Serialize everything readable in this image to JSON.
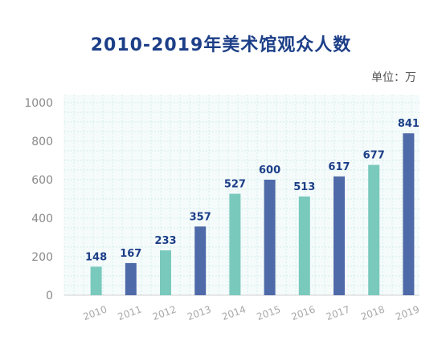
{
  "chart_data": {
    "type": "bar",
    "title": "2010-2019年美术馆观众人数",
    "unit": "单位：万",
    "categories": [
      "2010",
      "2011",
      "2012",
      "2013",
      "2014",
      "2015",
      "2016",
      "2017",
      "2018",
      "2019"
    ],
    "values": [
      148,
      167,
      233,
      357,
      527,
      600,
      513,
      617,
      677,
      841
    ],
    "bar_colors": [
      "#79c9bd",
      "#4f6aa8",
      "#79c9bd",
      "#4f6aa8",
      "#79c9bd",
      "#4f6aa8",
      "#79c9bd",
      "#4f6aa8",
      "#79c9bd",
      "#4f6aa8"
    ],
    "label_color": "#1d3f88",
    "ylim": [
      0,
      1000
    ],
    "yticks": [
      0,
      200,
      400,
      600,
      800,
      1000
    ],
    "grid": true
  }
}
